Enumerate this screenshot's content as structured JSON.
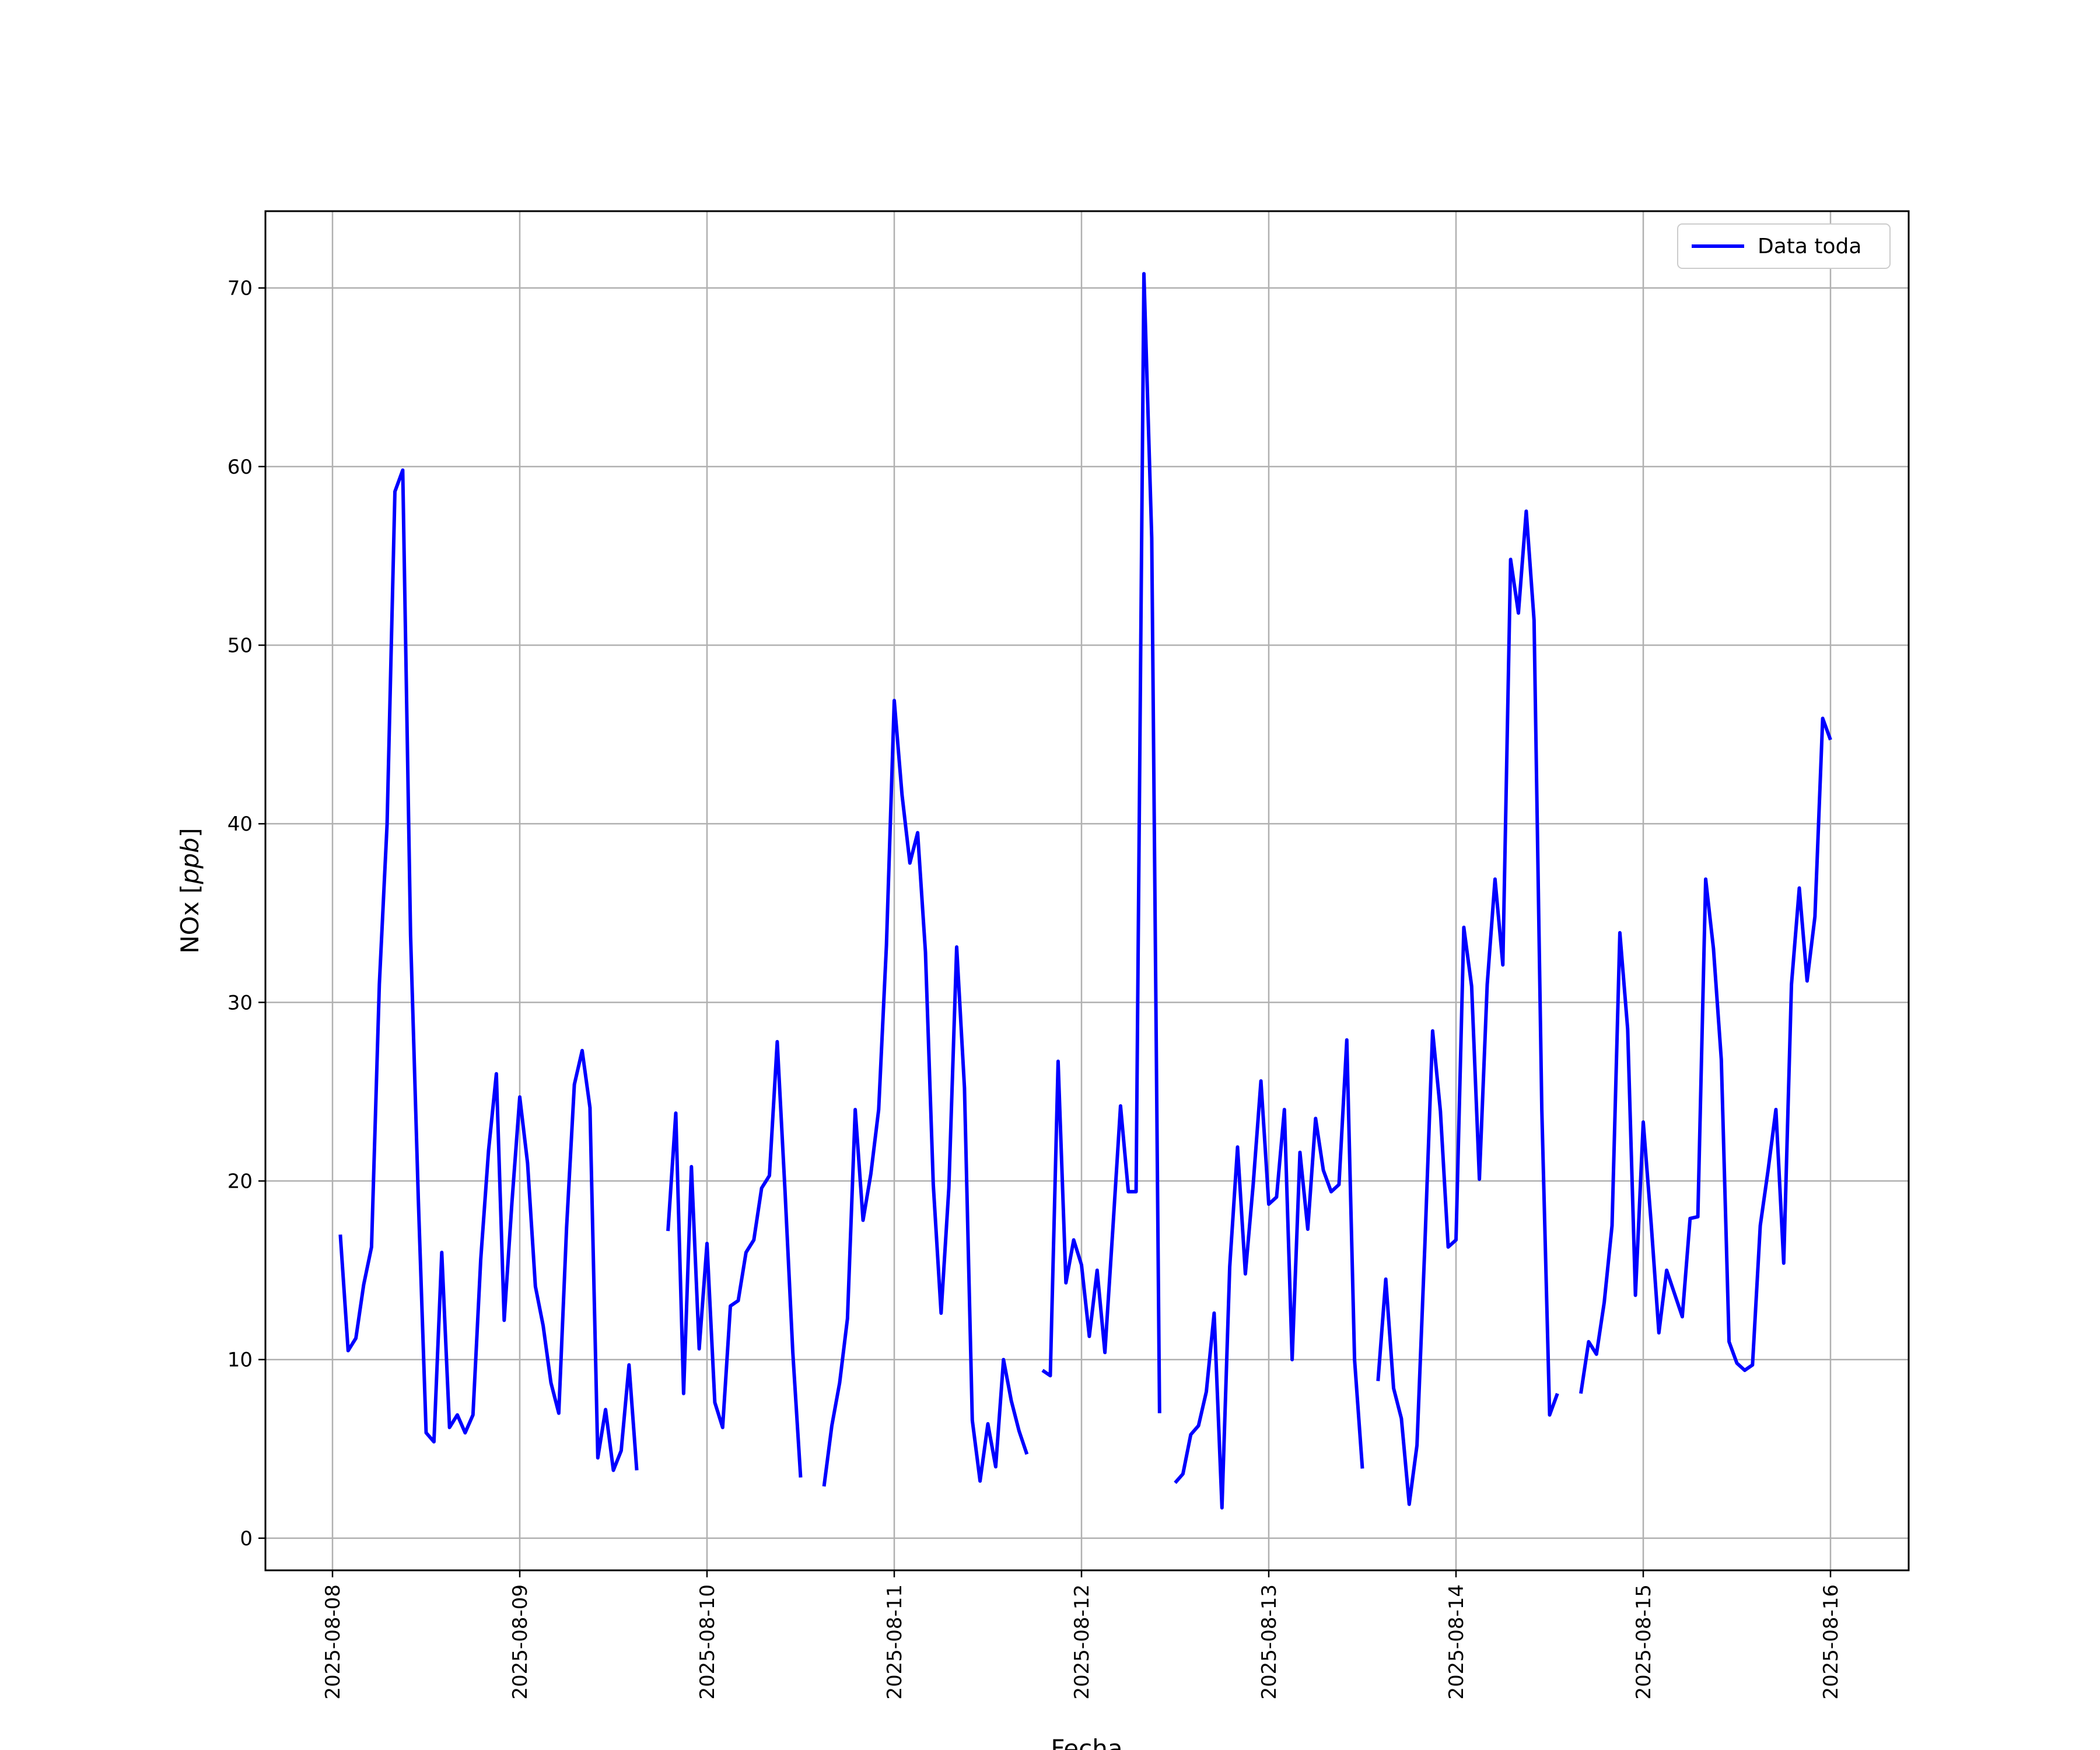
{
  "chart_data": {
    "type": "line",
    "xlabel": "Fecha",
    "ylabel_text": "NOx",
    "ylabel_unit": "ppb",
    "ylim": [
      -1.8,
      74.3
    ],
    "yticks": [
      0,
      10,
      20,
      30,
      40,
      50,
      60,
      70
    ],
    "xticks": [
      "2025-08-08",
      "2025-08-09",
      "2025-08-10",
      "2025-08-11",
      "2025-08-12",
      "2025-08-13",
      "2025-08-14",
      "2025-08-15",
      "2025-08-16"
    ],
    "grid": true,
    "legend_position": "top-right",
    "series": [
      {
        "name": "Data toda",
        "color": "#0000ff",
        "points": [
          [
            "2025-08-08 01:00",
            17.0
          ],
          [
            "2025-08-08 02:00",
            10.5
          ],
          [
            "2025-08-08 03:00",
            11.2
          ],
          [
            "2025-08-08 04:00",
            14.2
          ],
          [
            "2025-08-08 05:00",
            16.3
          ],
          [
            "2025-08-08 06:00",
            31.0
          ],
          [
            "2025-08-08 07:00",
            40.0
          ],
          [
            "2025-08-08 08:00",
            58.6
          ],
          [
            "2025-08-08 09:00",
            59.8
          ],
          [
            "2025-08-08 10:00",
            33.8
          ],
          [
            "2025-08-08 11:00",
            19.0
          ],
          [
            "2025-08-08 12:00",
            5.9
          ],
          [
            "2025-08-08 13:00",
            5.4
          ],
          [
            "2025-08-08 14:00",
            16.0
          ],
          [
            "2025-08-08 15:00",
            6.2
          ],
          [
            "2025-08-08 16:00",
            6.9
          ],
          [
            "2025-08-08 17:00",
            5.9
          ],
          [
            "2025-08-08 18:00",
            6.9
          ],
          [
            "2025-08-08 19:00",
            15.6
          ],
          [
            "2025-08-08 20:00",
            21.7
          ],
          [
            "2025-08-08 21:00",
            26.0
          ],
          [
            "2025-08-08 22:00",
            12.2
          ],
          [
            "2025-08-08 23:00",
            18.8
          ],
          [
            "2025-08-09 00:00",
            24.7
          ],
          [
            "2025-08-09 01:00",
            21.0
          ],
          [
            "2025-08-09 02:00",
            14.1
          ],
          [
            "2025-08-09 03:00",
            11.9
          ],
          [
            "2025-08-09 04:00",
            8.7
          ],
          [
            "2025-08-09 05:00",
            7.0
          ],
          [
            "2025-08-09 06:00",
            17.4
          ],
          [
            "2025-08-09 07:00",
            25.4
          ],
          [
            "2025-08-09 08:00",
            27.3
          ],
          [
            "2025-08-09 09:00",
            24.1
          ],
          [
            "2025-08-09 10:00",
            4.5
          ],
          [
            "2025-08-09 11:00",
            7.2
          ],
          [
            "2025-08-09 12:00",
            3.8
          ],
          [
            "2025-08-09 13:00",
            4.9
          ],
          [
            "2025-08-09 14:00",
            9.7
          ],
          [
            "2025-08-09 15:00",
            3.8
          ],
          null,
          [
            "2025-08-09 19:00",
            17.2
          ],
          [
            "2025-08-09 20:00",
            23.8
          ],
          [
            "2025-08-09 21:00",
            8.1
          ],
          [
            "2025-08-09 22:00",
            20.8
          ],
          [
            "2025-08-09 23:00",
            10.6
          ],
          [
            "2025-08-10 00:00",
            16.5
          ],
          [
            "2025-08-10 01:00",
            7.6
          ],
          [
            "2025-08-10 02:00",
            6.2
          ],
          [
            "2025-08-10 03:00",
            13.0
          ],
          [
            "2025-08-10 04:00",
            13.3
          ],
          [
            "2025-08-10 05:00",
            16.0
          ],
          [
            "2025-08-10 06:00",
            16.7
          ],
          [
            "2025-08-10 07:00",
            19.6
          ],
          [
            "2025-08-10 08:00",
            20.3
          ],
          [
            "2025-08-10 09:00",
            27.8
          ],
          [
            "2025-08-10 10:00",
            19.4
          ],
          [
            "2025-08-10 11:00",
            10.4
          ],
          [
            "2025-08-10 12:00",
            3.4
          ],
          null,
          [
            "2025-08-10 15:00",
            2.9
          ],
          [
            "2025-08-10 16:00",
            6.3
          ],
          [
            "2025-08-10 17:00",
            8.7
          ],
          [
            "2025-08-10 18:00",
            12.3
          ],
          [
            "2025-08-10 19:00",
            24.0
          ],
          [
            "2025-08-10 20:00",
            17.8
          ],
          [
            "2025-08-10 21:00",
            20.4
          ],
          [
            "2025-08-10 22:00",
            24.0
          ],
          [
            "2025-08-10 23:00",
            33.2
          ],
          [
            "2025-08-11 00:00",
            46.9
          ],
          [
            "2025-08-11 01:00",
            41.6
          ],
          [
            "2025-08-11 02:00",
            37.8
          ],
          [
            "2025-08-11 03:00",
            39.5
          ],
          [
            "2025-08-11 04:00",
            32.8
          ],
          [
            "2025-08-11 05:00",
            19.8
          ],
          [
            "2025-08-11 06:00",
            12.6
          ],
          [
            "2025-08-11 07:00",
            19.6
          ],
          [
            "2025-08-11 08:00",
            33.1
          ],
          [
            "2025-08-11 09:00",
            25.2
          ],
          [
            "2025-08-11 10:00",
            6.6
          ],
          [
            "2025-08-11 11:00",
            3.2
          ],
          [
            "2025-08-11 12:00",
            6.4
          ],
          [
            "2025-08-11 13:00",
            4.0
          ],
          [
            "2025-08-11 14:00",
            10.0
          ],
          [
            "2025-08-11 15:00",
            7.7
          ],
          [
            "2025-08-11 16:00",
            6.0
          ],
          [
            "2025-08-11 17:00",
            4.7
          ],
          null,
          [
            "2025-08-11 19:00",
            9.4
          ],
          [
            "2025-08-11 20:00",
            9.1
          ],
          [
            "2025-08-11 21:00",
            26.7
          ],
          [
            "2025-08-11 22:00",
            14.3
          ],
          [
            "2025-08-11 23:00",
            16.7
          ],
          [
            "2025-08-12 00:00",
            15.3
          ],
          [
            "2025-08-12 01:00",
            11.3
          ],
          [
            "2025-08-12 02:00",
            15.0
          ],
          [
            "2025-08-12 03:00",
            10.4
          ],
          [
            "2025-08-12 04:00",
            17.2
          ],
          [
            "2025-08-12 05:00",
            24.2
          ],
          [
            "2025-08-12 06:00",
            19.4
          ],
          [
            "2025-08-12 07:00",
            19.4
          ],
          [
            "2025-08-12 08:00",
            70.8
          ],
          [
            "2025-08-12 09:00",
            56.0
          ],
          [
            "2025-08-12 10:00",
            7.0
          ],
          null,
          [
            "2025-08-12 12:00",
            3.1
          ],
          [
            "2025-08-12 13:00",
            3.6
          ],
          [
            "2025-08-12 14:00",
            5.8
          ],
          [
            "2025-08-12 15:00",
            6.3
          ],
          [
            "2025-08-12 16:00",
            8.2
          ],
          [
            "2025-08-12 17:00",
            12.6
          ],
          [
            "2025-08-12 18:00",
            1.7
          ],
          [
            "2025-08-12 19:00",
            15.2
          ],
          [
            "2025-08-12 20:00",
            21.9
          ],
          [
            "2025-08-12 21:00",
            14.8
          ],
          [
            "2025-08-12 22:00",
            19.8
          ],
          [
            "2025-08-12 23:00",
            25.6
          ],
          [
            "2025-08-13 00:00",
            18.7
          ],
          [
            "2025-08-13 01:00",
            19.1
          ],
          [
            "2025-08-13 02:00",
            24.0
          ],
          [
            "2025-08-13 03:00",
            10.0
          ],
          [
            "2025-08-13 04:00",
            21.6
          ],
          [
            "2025-08-13 05:00",
            17.3
          ],
          [
            "2025-08-13 06:00",
            23.5
          ],
          [
            "2025-08-13 07:00",
            20.6
          ],
          [
            "2025-08-13 08:00",
            19.4
          ],
          [
            "2025-08-13 09:00",
            19.8
          ],
          [
            "2025-08-13 10:00",
            27.9
          ],
          [
            "2025-08-13 11:00",
            10.0
          ],
          [
            "2025-08-13 12:00",
            3.9
          ],
          null,
          [
            "2025-08-13 14:00",
            8.8
          ],
          [
            "2025-08-13 15:00",
            14.5
          ],
          [
            "2025-08-13 16:00",
            8.4
          ],
          [
            "2025-08-13 17:00",
            6.7
          ],
          [
            "2025-08-13 18:00",
            1.9
          ],
          [
            "2025-08-13 19:00",
            5.2
          ],
          [
            "2025-08-13 20:00",
            16.3
          ],
          [
            "2025-08-13 21:00",
            28.4
          ],
          [
            "2025-08-13 22:00",
            23.9
          ],
          [
            "2025-08-13 23:00",
            16.3
          ],
          [
            "2025-08-14 00:00",
            16.7
          ],
          [
            "2025-08-14 01:00",
            34.2
          ],
          [
            "2025-08-14 02:00",
            30.9
          ],
          [
            "2025-08-14 03:00",
            20.1
          ],
          [
            "2025-08-14 04:00",
            31.0
          ],
          [
            "2025-08-14 05:00",
            36.9
          ],
          [
            "2025-08-14 06:00",
            32.1
          ],
          [
            "2025-08-14 07:00",
            54.8
          ],
          [
            "2025-08-14 08:00",
            51.8
          ],
          [
            "2025-08-14 09:00",
            57.5
          ],
          [
            "2025-08-14 10:00",
            51.4
          ],
          [
            "2025-08-14 11:00",
            24.0
          ],
          [
            "2025-08-14 12:00",
            6.9
          ],
          [
            "2025-08-14 13:00",
            8.1
          ],
          null,
          [
            "2025-08-14 16:00",
            8.1
          ],
          [
            "2025-08-14 17:00",
            11.0
          ],
          [
            "2025-08-14 18:00",
            10.3
          ],
          [
            "2025-08-14 19:00",
            13.2
          ],
          [
            "2025-08-14 20:00",
            17.5
          ],
          [
            "2025-08-14 21:00",
            33.9
          ],
          [
            "2025-08-14 22:00",
            28.5
          ],
          [
            "2025-08-14 23:00",
            13.6
          ],
          [
            "2025-08-15 00:00",
            23.3
          ],
          [
            "2025-08-15 01:00",
            17.7
          ],
          [
            "2025-08-15 02:00",
            11.5
          ],
          [
            "2025-08-15 03:00",
            15.0
          ],
          [
            "2025-08-15 04:00",
            13.7
          ],
          [
            "2025-08-15 05:00",
            12.4
          ],
          [
            "2025-08-15 06:00",
            17.9
          ],
          [
            "2025-08-15 07:00",
            18.0
          ],
          [
            "2025-08-15 08:00",
            36.9
          ],
          [
            "2025-08-15 09:00",
            33.0
          ],
          [
            "2025-08-15 10:00",
            26.8
          ],
          [
            "2025-08-15 11:00",
            11.0
          ],
          [
            "2025-08-15 12:00",
            9.8
          ],
          [
            "2025-08-15 13:00",
            9.4
          ],
          [
            "2025-08-15 14:00",
            9.7
          ],
          [
            "2025-08-15 15:00",
            17.5
          ],
          [
            "2025-08-15 16:00",
            20.6
          ],
          [
            "2025-08-15 17:00",
            24.0
          ],
          [
            "2025-08-15 18:00",
            15.4
          ],
          [
            "2025-08-15 19:00",
            31.0
          ],
          [
            "2025-08-15 20:00",
            36.4
          ],
          [
            "2025-08-15 21:00",
            31.2
          ],
          [
            "2025-08-15 22:00",
            34.8
          ],
          [
            "2025-08-15 23:00",
            45.9
          ],
          [
            "2025-08-16 00:00",
            44.7
          ]
        ]
      }
    ]
  }
}
